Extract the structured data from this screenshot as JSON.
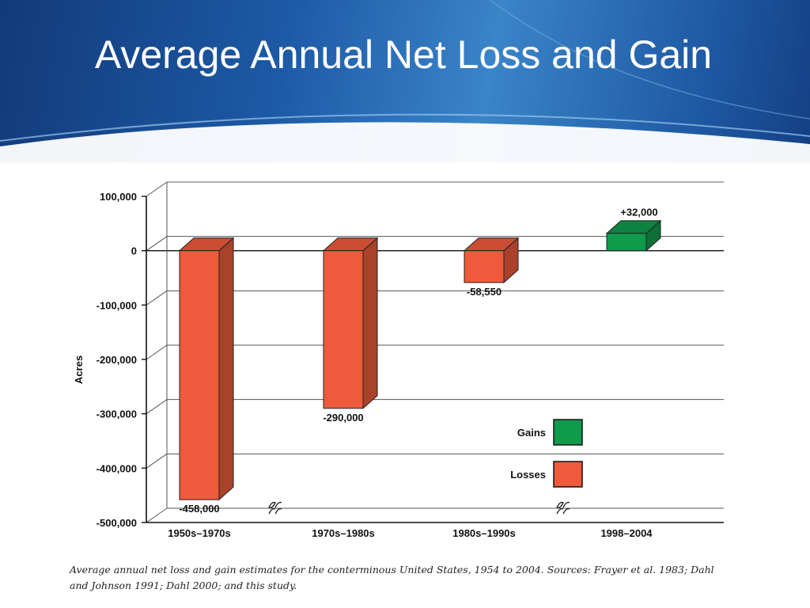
{
  "slide": {
    "title": "Average Annual Net Loss and Gain",
    "accent_color": "#1d5aa6"
  },
  "chart_data": {
    "type": "bar",
    "title": "",
    "xlabel": "",
    "ylabel": "Acres",
    "ylim": [
      -500000,
      100000
    ],
    "yticks": [
      100000,
      0,
      -100000,
      -200000,
      -300000,
      -400000,
      -500000
    ],
    "ytick_labels": [
      "100,000",
      "0",
      "-100,000",
      "-200,000",
      "-300,000",
      "-400,000",
      "-500,000"
    ],
    "categories": [
      "1950s–1970s",
      "1970s–1980s",
      "1980s–1990s",
      "1998–2004"
    ],
    "values": [
      -458000,
      -290000,
      -58550,
      32000
    ],
    "data_labels": [
      "-458,000",
      "-290,000",
      "-58,550",
      "+32,000"
    ],
    "series_colors": {
      "gain": "#0f9a4c",
      "loss": "#ef5a3c"
    },
    "legend": {
      "position": "bottom-right",
      "entries": [
        {
          "label": "Gains",
          "color": "#0f9a4c"
        },
        {
          "label": "Losses",
          "color": "#ef5a3c"
        }
      ]
    },
    "axis_breaks": [
      "between 1950s–1970s and 1970s–1980s",
      "between 1980s–1990s and 1998–2004"
    ],
    "grid": true
  },
  "caption": "Average annual net loss and gain estimates for the conterminous United States, 1954 to 2004. Sources: Frayer et al. 1983; Dahl and Johnson 1991; Dahl 2000; and this study."
}
